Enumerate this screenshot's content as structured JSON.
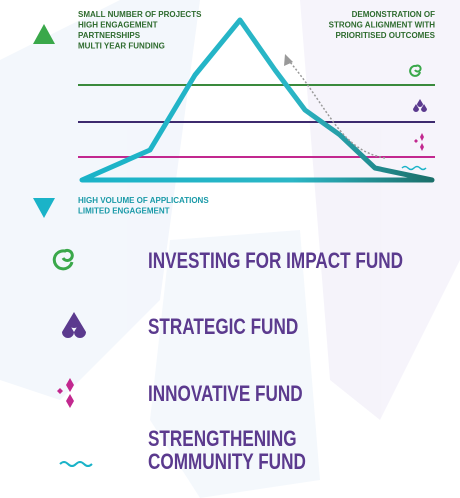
{
  "diagram": {
    "top_left": [
      "SMALL NUMBER OF PROJECTS",
      "HIGH ENGAGEMENT",
      "PARTNERSHIPS",
      "MULTI YEAR FUNDING"
    ],
    "top_right": [
      "DEMONSTRATION OF",
      "STRONG ALIGNMENT WITH",
      "PRIORITISED OUTCOMES"
    ],
    "bottom_left": [
      "HIGH VOLUME OF APPLICATIONS",
      "LIMITED ENGAGEMENT"
    ]
  },
  "legend": [
    {
      "lines": [
        "INVESTING FOR IMPACT FUND"
      ]
    },
    {
      "lines": [
        "STRATEGIC FUND"
      ]
    },
    {
      "lines": [
        "INNOVATIVE FUND"
      ]
    },
    {
      "lines": [
        "STRENGTHENING",
        "COMMUNITY FUND"
      ]
    }
  ]
}
